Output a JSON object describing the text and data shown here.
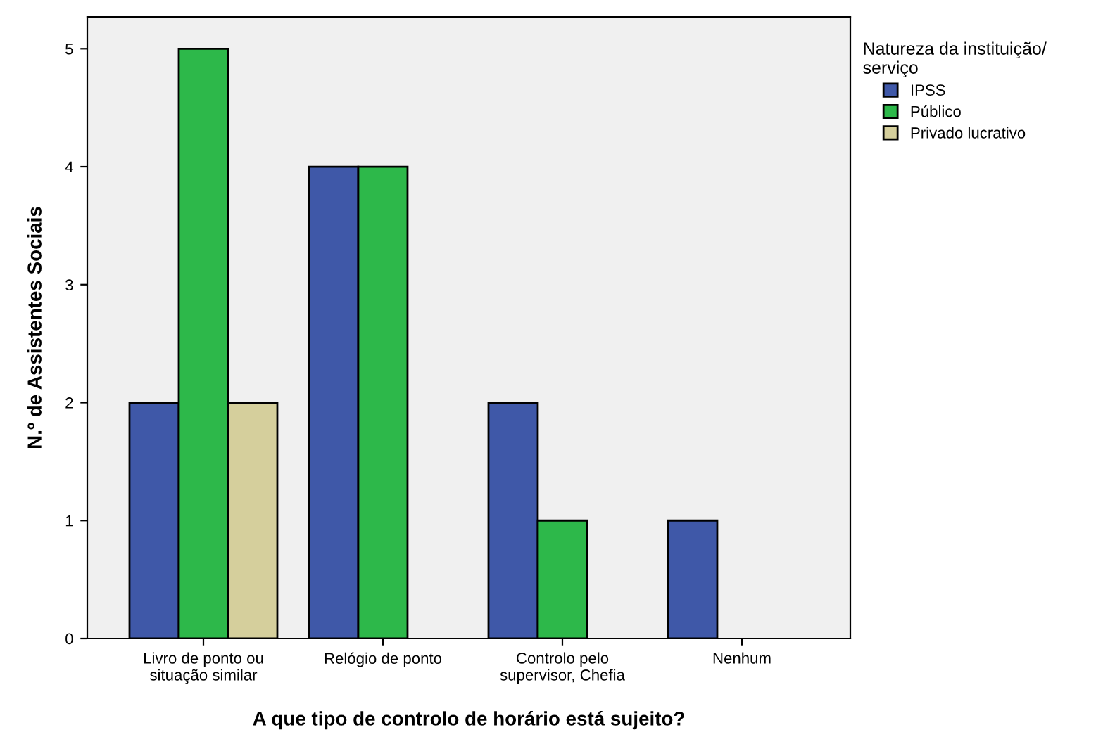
{
  "chart_data": {
    "type": "bar",
    "xlabel": "A que tipo de controlo de horário está sujeito?",
    "ylabel": "N.º de Assistentes Sociais",
    "legend_title": "Natureza da instituição/\nserviço",
    "categories": [
      "Livro de ponto ou\nsituação similar",
      "Relógio de ponto",
      "Controlo pelo\nsupervisor, Chefia",
      "Nenhum"
    ],
    "series": [
      {
        "name": "IPSS",
        "color": "#3f58a8",
        "values": [
          2,
          4,
          2,
          1
        ]
      },
      {
        "name": "Público",
        "color": "#2db84a",
        "values": [
          5,
          4,
          1,
          null
        ]
      },
      {
        "name": "Privado lucrativo",
        "color": "#d5cf9c",
        "values": [
          2,
          null,
          null,
          null
        ]
      }
    ],
    "ylim": [
      0,
      5.27
    ],
    "yticks": [
      0,
      1,
      2,
      3,
      4,
      5
    ],
    "grid": false,
    "legend": "top right"
  }
}
